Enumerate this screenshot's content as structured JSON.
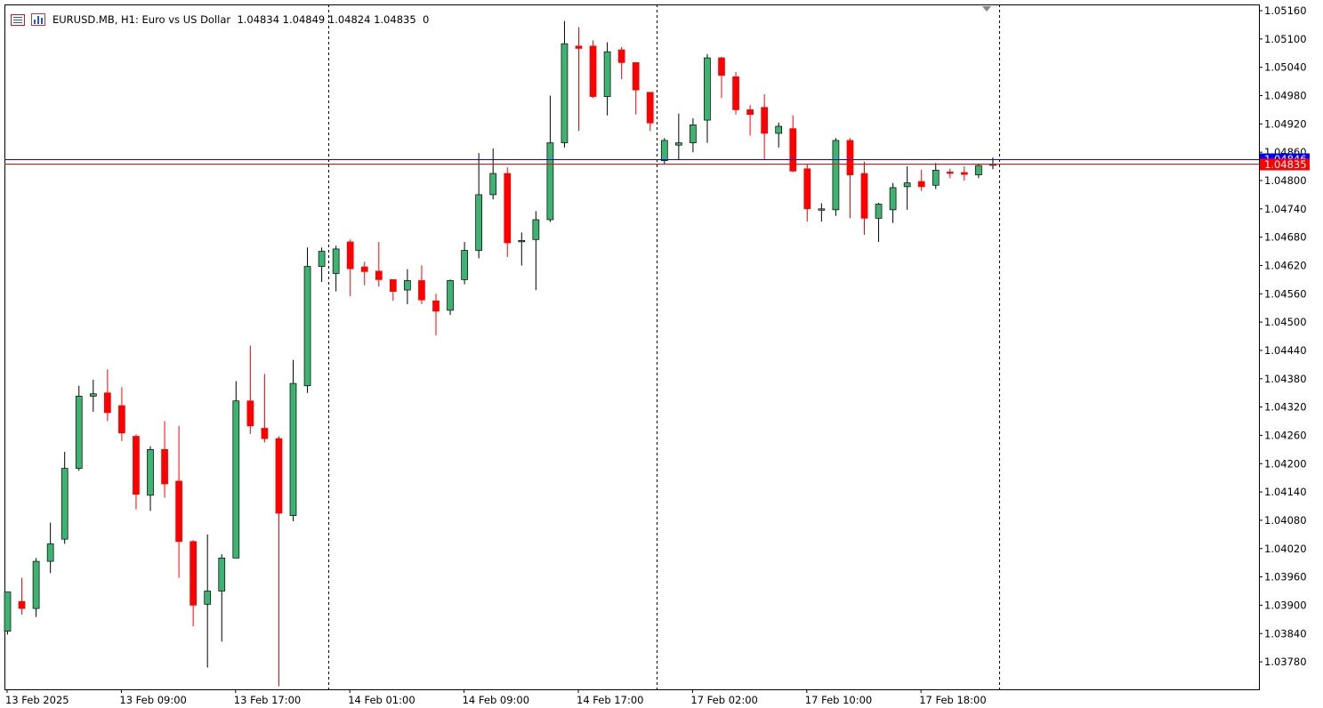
{
  "info_bar": {
    "symbol": "EURUSD.MB, H1:",
    "description": "Euro vs US Dollar",
    "ohlc": "1.04834 1.04849 1.04824 1.04835",
    "tick_volume": "0",
    "menu_icon": "chart-menu-icon",
    "bars_icon": "bar-chart-icon"
  },
  "chart_data": {
    "type": "candlestick",
    "symbol": "EURUSD.MB",
    "timeframe": "H1",
    "ylim": [
      1.03724,
      1.05172
    ],
    "y_ticks": [
      "1.05160",
      "1.05100",
      "1.05040",
      "1.04980",
      "1.04920",
      "1.04860",
      "1.04800",
      "1.04740",
      "1.04680",
      "1.04620",
      "1.04560",
      "1.04500",
      "1.04440",
      "1.04380",
      "1.04320",
      "1.04260",
      "1.04200",
      "1.04140",
      "1.04080",
      "1.04020",
      "1.03960",
      "1.03900",
      "1.03840",
      "1.03780"
    ],
    "x_labels": [
      {
        "label": "13 Feb 2025",
        "index": 0
      },
      {
        "label": "13 Feb 09:00",
        "index": 8
      },
      {
        "label": "13 Feb 17:00",
        "index": 16
      },
      {
        "label": "14 Feb 01:00",
        "index": 24
      },
      {
        "label": "14 Feb 09:00",
        "index": 32
      },
      {
        "label": "14 Feb 17:00",
        "index": 40
      },
      {
        "label": "17 Feb 02:00",
        "index": 48
      },
      {
        "label": "17 Feb 10:00",
        "index": 56
      },
      {
        "label": "17 Feb 18:00",
        "index": 64
      }
    ],
    "period_separators_after_index": [
      22.5,
      45.5,
      69.5
    ],
    "bid_line": {
      "value": 1.04835,
      "label": "1.04835",
      "color": "#ff0000"
    },
    "ask_line": {
      "value": 1.04846,
      "label": "1.04846",
      "color": "#0000ff"
    },
    "bull_color": "#3cb371",
    "bear_color": "#ff0000",
    "candles": [
      {
        "o": 1.03845,
        "h": 1.03928,
        "l": 1.03838,
        "c": 1.03928
      },
      {
        "o": 1.03908,
        "h": 1.03958,
        "l": 1.0388,
        "c": 1.03893
      },
      {
        "o": 1.03893,
        "h": 1.04,
        "l": 1.03875,
        "c": 1.03993
      },
      {
        "o": 1.03993,
        "h": 1.04075,
        "l": 1.03968,
        "c": 1.0403
      },
      {
        "o": 1.0404,
        "h": 1.04225,
        "l": 1.0403,
        "c": 1.0419
      },
      {
        "o": 1.0419,
        "h": 1.04365,
        "l": 1.04185,
        "c": 1.04343
      },
      {
        "o": 1.04343,
        "h": 1.04378,
        "l": 1.0431,
        "c": 1.04348
      },
      {
        "o": 1.0435,
        "h": 1.044,
        "l": 1.0429,
        "c": 1.04308
      },
      {
        "o": 1.04323,
        "h": 1.04362,
        "l": 1.04248,
        "c": 1.04265
      },
      {
        "o": 1.04258,
        "h": 1.04262,
        "l": 1.04103,
        "c": 1.04135
      },
      {
        "o": 1.04133,
        "h": 1.04237,
        "l": 1.041,
        "c": 1.0423
      },
      {
        "o": 1.0423,
        "h": 1.0429,
        "l": 1.04128,
        "c": 1.04157
      },
      {
        "o": 1.04163,
        "h": 1.0428,
        "l": 1.03958,
        "c": 1.04035
      },
      {
        "o": 1.04035,
        "h": 1.04038,
        "l": 1.03855,
        "c": 1.039
      },
      {
        "o": 1.03902,
        "h": 1.0405,
        "l": 1.03768,
        "c": 1.0393
      },
      {
        "o": 1.0393,
        "h": 1.04008,
        "l": 1.03823,
        "c": 1.04
      },
      {
        "o": 1.04,
        "h": 1.04375,
        "l": 1.04,
        "c": 1.04333
      },
      {
        "o": 1.04333,
        "h": 1.0445,
        "l": 1.04263,
        "c": 1.0428
      },
      {
        "o": 1.04275,
        "h": 1.0439,
        "l": 1.04245,
        "c": 1.04253
      },
      {
        "o": 1.04253,
        "h": 1.04258,
        "l": 1.03728,
        "c": 1.04095
      },
      {
        "o": 1.0409,
        "h": 1.0442,
        "l": 1.04078,
        "c": 1.0437
      },
      {
        "o": 1.04365,
        "h": 1.04658,
        "l": 1.0435,
        "c": 1.04618
      },
      {
        "o": 1.04618,
        "h": 1.04658,
        "l": 1.04585,
        "c": 1.0465
      },
      {
        "o": 1.04603,
        "h": 1.04662,
        "l": 1.04565,
        "c": 1.04655
      },
      {
        "o": 1.0467,
        "h": 1.04675,
        "l": 1.04555,
        "c": 1.04613
      },
      {
        "o": 1.04617,
        "h": 1.04628,
        "l": 1.04578,
        "c": 1.04607
      },
      {
        "o": 1.04608,
        "h": 1.0467,
        "l": 1.04575,
        "c": 1.0459
      },
      {
        "o": 1.0459,
        "h": 1.0459,
        "l": 1.04545,
        "c": 1.04565
      },
      {
        "o": 1.04568,
        "h": 1.04612,
        "l": 1.04538,
        "c": 1.04588
      },
      {
        "o": 1.04588,
        "h": 1.0462,
        "l": 1.04538,
        "c": 1.04547
      },
      {
        "o": 1.04545,
        "h": 1.0456,
        "l": 1.04472,
        "c": 1.04523
      },
      {
        "o": 1.04525,
        "h": 1.0459,
        "l": 1.04515,
        "c": 1.04588
      },
      {
        "o": 1.0459,
        "h": 1.0467,
        "l": 1.0458,
        "c": 1.04652
      },
      {
        "o": 1.04652,
        "h": 1.04858,
        "l": 1.04635,
        "c": 1.0477
      },
      {
        "o": 1.0477,
        "h": 1.04868,
        "l": 1.0476,
        "c": 1.04815
      },
      {
        "o": 1.04815,
        "h": 1.04828,
        "l": 1.04638,
        "c": 1.04668
      },
      {
        "o": 1.04672,
        "h": 1.0469,
        "l": 1.0462,
        "c": 1.04673
      },
      {
        "o": 1.04675,
        "h": 1.04735,
        "l": 1.04568,
        "c": 1.04717
      },
      {
        "o": 1.04717,
        "h": 1.0498,
        "l": 1.04712,
        "c": 1.0488
      },
      {
        "o": 1.0488,
        "h": 1.05138,
        "l": 1.0487,
        "c": 1.0509
      },
      {
        "o": 1.05085,
        "h": 1.05125,
        "l": 1.04905,
        "c": 1.0508
      },
      {
        "o": 1.05085,
        "h": 1.05097,
        "l": 1.04975,
        "c": 1.04978
      },
      {
        "o": 1.04978,
        "h": 1.05093,
        "l": 1.04938,
        "c": 1.05073
      },
      {
        "o": 1.05077,
        "h": 1.05083,
        "l": 1.05015,
        "c": 1.0505
      },
      {
        "o": 1.0505,
        "h": 1.0505,
        "l": 1.0494,
        "c": 1.04992
      },
      {
        "o": 1.04987,
        "h": 1.04987,
        "l": 1.04905,
        "c": 1.04922
      },
      {
        "o": 1.04842,
        "h": 1.0489,
        "l": 1.04835,
        "c": 1.04885
      },
      {
        "o": 1.04875,
        "h": 1.04942,
        "l": 1.04845,
        "c": 1.0488
      },
      {
        "o": 1.0488,
        "h": 1.04932,
        "l": 1.0486,
        "c": 1.04918
      },
      {
        "o": 1.04928,
        "h": 1.05068,
        "l": 1.0488,
        "c": 1.0506
      },
      {
        "o": 1.0506,
        "h": 1.05062,
        "l": 1.04975,
        "c": 1.05023
      },
      {
        "o": 1.0502,
        "h": 1.0503,
        "l": 1.0494,
        "c": 1.0495
      },
      {
        "o": 1.0495,
        "h": 1.0496,
        "l": 1.04895,
        "c": 1.0494
      },
      {
        "o": 1.04955,
        "h": 1.04983,
        "l": 1.04845,
        "c": 1.049
      },
      {
        "o": 1.049,
        "h": 1.04923,
        "l": 1.0487,
        "c": 1.04915
      },
      {
        "o": 1.0491,
        "h": 1.04938,
        "l": 1.04818,
        "c": 1.0482
      },
      {
        "o": 1.04825,
        "h": 1.04835,
        "l": 1.04713,
        "c": 1.0474
      },
      {
        "o": 1.0474,
        "h": 1.04752,
        "l": 1.04713,
        "c": 1.0474
      },
      {
        "o": 1.04738,
        "h": 1.0489,
        "l": 1.04725,
        "c": 1.04885
      },
      {
        "o": 1.04885,
        "h": 1.0489,
        "l": 1.0472,
        "c": 1.04812
      },
      {
        "o": 1.04815,
        "h": 1.0484,
        "l": 1.04685,
        "c": 1.0472
      },
      {
        "o": 1.0472,
        "h": 1.04753,
        "l": 1.0467,
        "c": 1.0475
      },
      {
        "o": 1.04738,
        "h": 1.04795,
        "l": 1.0471,
        "c": 1.04785
      },
      {
        "o": 1.04787,
        "h": 1.0483,
        "l": 1.04738,
        "c": 1.04795
      },
      {
        "o": 1.04798,
        "h": 1.04823,
        "l": 1.04778,
        "c": 1.04787
      },
      {
        "o": 1.0479,
        "h": 1.04837,
        "l": 1.04782,
        "c": 1.04822
      },
      {
        "o": 1.04818,
        "h": 1.04825,
        "l": 1.04805,
        "c": 1.04817
      },
      {
        "o": 1.04817,
        "h": 1.0483,
        "l": 1.048,
        "c": 1.04813
      },
      {
        "o": 1.04812,
        "h": 1.04835,
        "l": 1.04805,
        "c": 1.04832
      },
      {
        "o": 1.04834,
        "h": 1.04849,
        "l": 1.04824,
        "c": 1.04835
      }
    ]
  }
}
